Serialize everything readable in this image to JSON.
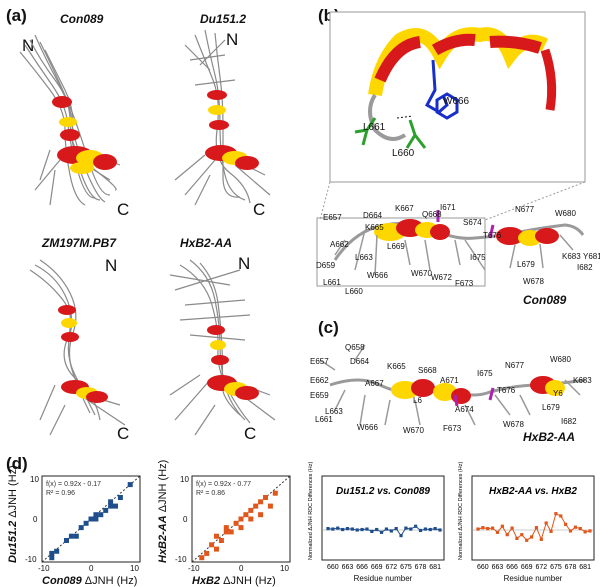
{
  "panels": {
    "a": {
      "label": "(a)",
      "structures": [
        {
          "name": "Con089",
          "n_term": "N",
          "c_term": "C"
        },
        {
          "name": "Du151.2",
          "n_term": "N",
          "c_term": "C"
        },
        {
          "name": "ZM197M.PB7",
          "n_term": "N",
          "c_term": "C"
        },
        {
          "name": "HxB2-AA",
          "n_term": "N",
          "c_term": "C"
        }
      ]
    },
    "b": {
      "label": "(b)",
      "inset_residues": [
        "W666",
        "L661",
        "L660"
      ],
      "residues": [
        "E657",
        "D664",
        "K667",
        "Q668",
        "I671",
        "S674",
        "N677",
        "W680",
        "A662",
        "K665",
        "T676",
        "D659",
        "L663",
        "L669",
        "I675",
        "L679",
        "K683",
        "Y681",
        "W666",
        "W670",
        "I682",
        "L661",
        "L660",
        "W672",
        "F673",
        "W678"
      ],
      "structure_name": "Con089"
    },
    "c": {
      "label": "(c)",
      "residues": [
        "Q658",
        "E657",
        "D664",
        "K665",
        "S668",
        "A671",
        "I675",
        "N677",
        "W680",
        "E662",
        "A667",
        "T676",
        "K683",
        "E659",
        "L6",
        "A674",
        "Y6",
        "L663",
        "W666",
        "W670",
        "F673",
        "W678",
        "L679",
        "I682",
        "L661"
      ],
      "structure_name": "HxB2-AA"
    },
    "d": {
      "label": "(d)",
      "plots": [
        {
          "ylabel_italic": "Du151.2",
          "ylabel_rest": " ΔJNH (Hz)",
          "xlabel_italic": "Con089",
          "xlabel_rest": " ΔJNH (Hz)",
          "fit_line1": "f(x) = 0.92x - 0.17",
          "fit_line2": "R² = 0.96",
          "xticks": [
            "-10",
            "0",
            "10"
          ],
          "yticks": [
            "-10",
            "0",
            "10"
          ],
          "color": "#1f4e8c"
        },
        {
          "ylabel_italic": "HxB2-AA",
          "ylabel_rest": " ΔJNH (Hz)",
          "xlabel_italic": "HxB2",
          "xlabel_rest": " ΔJNH (Hz)",
          "fit_line1": "f(x) = 0.92x - 0.77",
          "fit_line2": "R² = 0.86",
          "xticks": [
            "-10",
            "0",
            "10"
          ],
          "yticks": [
            "-10",
            "0",
            "10"
          ],
          "color": "#e0561b"
        },
        {
          "title": "Du151.2 vs. Con089",
          "ylabel": "Normalized ΔJNH RDC Differences (Hz)",
          "xlabel": "Residue number",
          "xticks": [
            "660",
            "663",
            "666",
            "669",
            "672",
            "675",
            "678",
            "681"
          ],
          "color": "#1f4e8c"
        },
        {
          "title": "HxB2-AA vs. HxB2",
          "ylabel": "Normalized ΔJNH RDC Differences (Hz)",
          "xlabel": "Residue number",
          "xticks": [
            "660",
            "663",
            "666",
            "669",
            "672",
            "675",
            "678",
            "681"
          ],
          "color": "#e0561b"
        }
      ]
    }
  },
  "chart_data": [
    {
      "type": "scatter",
      "xlabel": "Con089 ΔJNH (Hz)",
      "ylabel": "Du151.2 ΔJNH (Hz)",
      "xlim": [
        -10,
        10
      ],
      "ylim": [
        -10,
        10
      ],
      "fit": "f(x) = 0.92x - 0.17",
      "r2": 0.96,
      "points": [
        [
          -8,
          -9
        ],
        [
          -8,
          -8
        ],
        [
          -7,
          -7.5
        ],
        [
          -5,
          -5
        ],
        [
          -4,
          -4
        ],
        [
          -3,
          -4
        ],
        [
          -2,
          -2
        ],
        [
          -1,
          -1
        ],
        [
          0,
          0
        ],
        [
          1,
          0
        ],
        [
          1,
          1
        ],
        [
          2,
          1
        ],
        [
          3,
          2
        ],
        [
          4,
          3
        ],
        [
          4,
          4
        ],
        [
          5,
          3
        ],
        [
          6,
          5
        ],
        [
          8,
          8
        ]
      ]
    },
    {
      "type": "scatter",
      "xlabel": "HxB2 ΔJNH (Hz)",
      "ylabel": "HxB2-AA ΔJNH (Hz)",
      "xlim": [
        -10,
        10
      ],
      "ylim": [
        -10,
        10
      ],
      "fit": "f(x) = 0.92x - 0.77",
      "r2": 0.86,
      "points": [
        [
          -8,
          -9
        ],
        [
          -7,
          -8
        ],
        [
          -6,
          -6
        ],
        [
          -5,
          -7
        ],
        [
          -5,
          -4
        ],
        [
          -4,
          -5
        ],
        [
          -3,
          -3
        ],
        [
          -3,
          -2
        ],
        [
          -2,
          -3
        ],
        [
          -1,
          -1
        ],
        [
          0,
          -2
        ],
        [
          0,
          0
        ],
        [
          1,
          1
        ],
        [
          2,
          0
        ],
        [
          2,
          2
        ],
        [
          3,
          3
        ],
        [
          4,
          1
        ],
        [
          4,
          4
        ],
        [
          5,
          5
        ],
        [
          6,
          3
        ],
        [
          7,
          6
        ]
      ]
    },
    {
      "type": "line",
      "title": "Du151.2 vs. Con089",
      "xlabel": "Residue number",
      "x": [
        659,
        660,
        661,
        662,
        663,
        664,
        665,
        666,
        667,
        668,
        669,
        670,
        671,
        672,
        673,
        674,
        675,
        676,
        677,
        678,
        679,
        680,
        681,
        682
      ],
      "y": [
        0.3,
        0.2,
        0.4,
        0.1,
        0.3,
        0.2,
        0.0,
        0.1,
        0.2,
        -0.3,
        0.1,
        -0.5,
        0.2,
        -0.2,
        0.3,
        -1.2,
        0.4,
        0.2,
        0.8,
        -0.1,
        0.2,
        0.1,
        0.3,
        0.0
      ],
      "ylim": [
        -6,
        6
      ]
    },
    {
      "type": "line",
      "title": "HxB2-AA vs. HxB2",
      "xlabel": "Residue number",
      "x": [
        659,
        660,
        661,
        662,
        663,
        664,
        665,
        666,
        667,
        668,
        669,
        670,
        671,
        672,
        673,
        674,
        675,
        676,
        677,
        678,
        679,
        680,
        681,
        682
      ],
      "y": [
        0.2,
        0.5,
        0.3,
        0.4,
        -0.5,
        0.8,
        -1.0,
        0.4,
        -1.8,
        -1.0,
        -2.2,
        -1.5,
        0.5,
        -2.0,
        1.5,
        -0.3,
        3.5,
        3.0,
        1.2,
        -0.2,
        0.6,
        0.3,
        -0.4,
        -0.2
      ],
      "ylim": [
        -6,
        6
      ]
    }
  ]
}
